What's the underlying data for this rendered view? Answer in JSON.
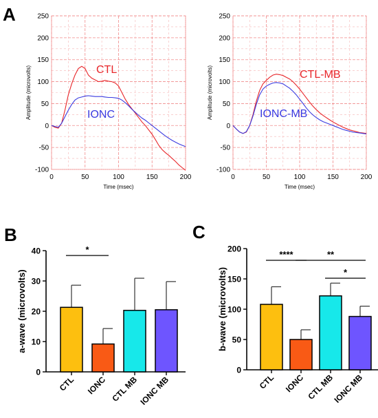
{
  "panels": {
    "A": "A",
    "B": "B",
    "C": "C"
  },
  "chart_data": [
    {
      "type": "line",
      "panel": "A",
      "xlabel": "Time (msec)",
      "ylabel": "Amplitude (microvolts)",
      "xlim": [
        0,
        200
      ],
      "ylim": [
        -100,
        250
      ],
      "xticks": [
        0,
        50,
        100,
        150,
        200
      ],
      "yticks": [
        -100,
        -50,
        0,
        50,
        100,
        150,
        200,
        250
      ],
      "grid": true,
      "series": [
        {
          "name": "CTL",
          "color": "#e8262a",
          "x": [
            0,
            5,
            10,
            15,
            20,
            25,
            30,
            35,
            40,
            45,
            50,
            55,
            60,
            65,
            70,
            75,
            80,
            85,
            90,
            95,
            100,
            105,
            110,
            115,
            120,
            125,
            130,
            135,
            140,
            145,
            150,
            155,
            160,
            165,
            170,
            175,
            180,
            185,
            190,
            195,
            200
          ],
          "y": [
            0,
            -4,
            -6,
            5,
            35,
            70,
            95,
            115,
            130,
            135,
            130,
            115,
            108,
            104,
            100,
            101,
            103,
            101,
            100,
            97,
            90,
            75,
            60,
            48,
            38,
            28,
            18,
            8,
            0,
            -10,
            -20,
            -32,
            -45,
            -55,
            -62,
            -68,
            -75,
            -82,
            -90,
            -96,
            -102
          ]
        },
        {
          "name": "IONC",
          "color": "#3a3ae0",
          "x": [
            0,
            5,
            10,
            15,
            20,
            25,
            30,
            35,
            40,
            45,
            50,
            55,
            60,
            65,
            70,
            75,
            80,
            85,
            90,
            95,
            100,
            105,
            110,
            115,
            120,
            125,
            130,
            135,
            140,
            145,
            150,
            155,
            160,
            165,
            170,
            175,
            180,
            185,
            190,
            195,
            200
          ],
          "y": [
            0,
            -2,
            -4,
            5,
            20,
            35,
            48,
            58,
            63,
            65,
            67,
            68,
            67,
            66,
            66,
            66,
            65,
            64,
            64,
            63,
            62,
            58,
            52,
            45,
            37,
            30,
            23,
            17,
            12,
            6,
            0,
            -6,
            -12,
            -18,
            -24,
            -29,
            -34,
            -38,
            -42,
            -45,
            -48
          ]
        }
      ],
      "annotations": [
        "CTL",
        "IONC"
      ]
    },
    {
      "type": "line",
      "panel": "A",
      "xlabel": "Time (msec)",
      "ylabel": "Amplitude (microvolts)",
      "xlim": [
        0,
        200
      ],
      "ylim": [
        -100,
        250
      ],
      "xticks": [
        0,
        50,
        100,
        150,
        200
      ],
      "yticks": [
        -100,
        -50,
        0,
        50,
        100,
        150,
        200,
        250
      ],
      "grid": true,
      "series": [
        {
          "name": "CTL-MB",
          "color": "#e8262a",
          "x": [
            0,
            5,
            10,
            15,
            20,
            25,
            30,
            35,
            40,
            45,
            50,
            55,
            60,
            65,
            70,
            75,
            80,
            85,
            90,
            95,
            100,
            105,
            110,
            115,
            120,
            125,
            130,
            135,
            140,
            145,
            150,
            155,
            160,
            165,
            170,
            175,
            180,
            185,
            190,
            195,
            200
          ],
          "y": [
            0,
            -8,
            -15,
            -18,
            -15,
            0,
            25,
            55,
            80,
            95,
            103,
            110,
            115,
            117,
            116,
            114,
            110,
            106,
            100,
            92,
            83,
            73,
            63,
            53,
            44,
            36,
            29,
            23,
            18,
            13,
            8,
            4,
            0,
            -4,
            -7,
            -10,
            -12,
            -14,
            -16,
            -17,
            -18
          ]
        },
        {
          "name": "IONC-MB",
          "color": "#3a3ae0",
          "x": [
            0,
            5,
            10,
            15,
            20,
            25,
            30,
            35,
            40,
            45,
            50,
            55,
            60,
            65,
            70,
            75,
            80,
            85,
            90,
            95,
            100,
            105,
            110,
            115,
            120,
            125,
            130,
            135,
            140,
            145,
            150,
            155,
            160,
            165,
            170,
            175,
            180,
            185,
            190,
            195,
            200
          ],
          "y": [
            0,
            -8,
            -15,
            -18,
            -14,
            0,
            22,
            48,
            70,
            83,
            90,
            94,
            97,
            98,
            97,
            95,
            90,
            85,
            78,
            70,
            60,
            50,
            40,
            31,
            24,
            18,
            13,
            9,
            6,
            3,
            0,
            -3,
            -6,
            -9,
            -11,
            -13,
            -15,
            -16,
            -17,
            -18,
            -19
          ]
        }
      ],
      "annotations": [
        "CTL-MB",
        "IONC-MB"
      ]
    },
    {
      "type": "bar",
      "panel": "B",
      "categories": [
        "CTL",
        "IONC",
        "CTL MB",
        "IONC MB"
      ],
      "values": [
        21.3,
        9.2,
        20.3,
        20.5
      ],
      "errors": [
        7.3,
        5.1,
        10.6,
        9.3
      ],
      "colors": [
        "#fdbf0f",
        "#f95a15",
        "#17e8ea",
        "#6e55ff"
      ],
      "ylabel": "a-wave (microvolts)",
      "ylim": [
        0,
        40
      ],
      "yticks": [
        0,
        10,
        20,
        30,
        40
      ],
      "significance": [
        {
          "from": 0,
          "to": 1,
          "label": "*"
        }
      ]
    },
    {
      "type": "bar",
      "panel": "C",
      "categories": [
        "CTL",
        "IONC",
        "CTL MB",
        "IONC MB"
      ],
      "values": [
        108,
        50,
        122,
        88
      ],
      "errors": [
        29,
        16,
        21,
        17
      ],
      "colors": [
        "#fdbf0f",
        "#f95a15",
        "#17e8ea",
        "#6e55ff"
      ],
      "ylabel": "b-wave (microvolts)",
      "ylim": [
        0,
        200
      ],
      "yticks": [
        0,
        50,
        100,
        150,
        200
      ],
      "significance": [
        {
          "from": 0,
          "to": 1,
          "label": "****"
        },
        {
          "from": 1,
          "to": 3,
          "label": "**"
        },
        {
          "from": 2,
          "to": 3,
          "label": "*"
        }
      ]
    }
  ]
}
